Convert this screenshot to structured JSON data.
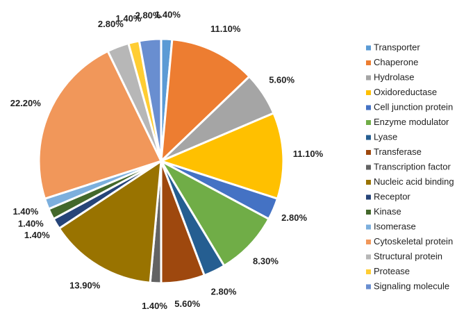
{
  "chart_data": {
    "type": "pie",
    "categories": [
      "Transporter",
      "Chaperone",
      "Hydrolase",
      "Oxidoreductase",
      "Cell junction protein",
      "Enzyme modulator",
      "Lyase",
      "Transferase",
      "Transcription factor",
      "Nucleic acid binding",
      "Receptor",
      "Kinase",
      "Isomerase",
      "Cytoskeletal protein",
      "Structural protein",
      "Protease",
      "Signaling molecule"
    ],
    "values": [
      1.4,
      11.1,
      5.6,
      11.1,
      2.8,
      8.3,
      2.8,
      5.6,
      1.4,
      13.9,
      1.4,
      1.4,
      1.4,
      22.2,
      2.8,
      1.4,
      2.8
    ],
    "value_labels": [
      "1.40%",
      "11.10%",
      "5.60%",
      "11.10%",
      "2.80%",
      "8.30%",
      "2.80%",
      "5.60%",
      "1.40%",
      "13.90%",
      "1.40%",
      "1.40%",
      "1.40%",
      "22.20%",
      "2.80%",
      "1.40%",
      "2.80%"
    ],
    "colors": [
      "#5b9bd5",
      "#ed7d31",
      "#a5a5a5",
      "#ffc000",
      "#4472c4",
      "#70ad47",
      "#255e91",
      "#9e480e",
      "#636363",
      "#997300",
      "#264478",
      "#43682b",
      "#7cafdd",
      "#f1975a",
      "#b7b7b7",
      "#ffcd33",
      "#698ed0"
    ],
    "legend": "right"
  }
}
